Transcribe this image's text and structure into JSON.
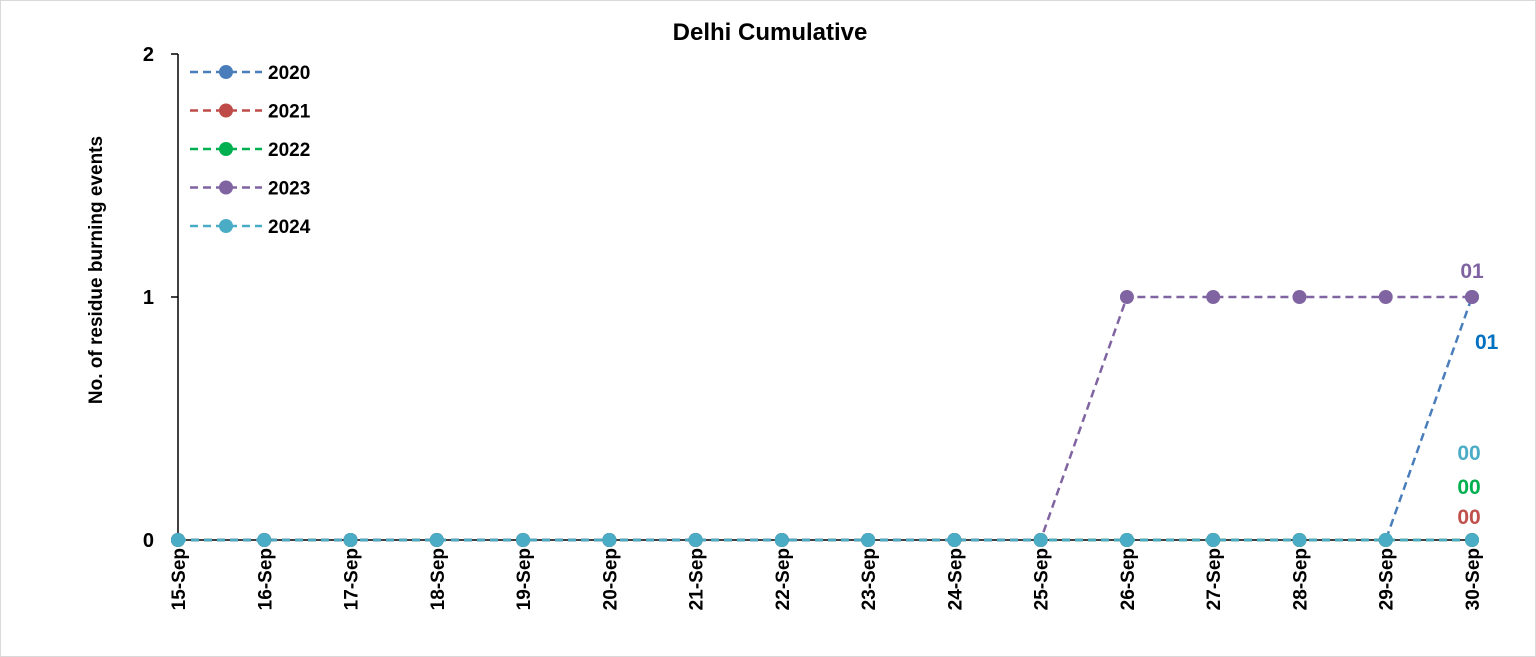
{
  "chart_data": {
    "type": "line",
    "title": "Delhi Cumulative",
    "xlabel": "",
    "ylabel": "No. of residue burning events",
    "categories": [
      "15-Sep",
      "16-Sep",
      "17-Sep",
      "18-Sep",
      "19-Sep",
      "20-Sep",
      "21-Sep",
      "22-Sep",
      "23-Sep",
      "24-Sep",
      "25-Sep",
      "26-Sep",
      "27-Sep",
      "28-Sep",
      "29-Sep",
      "30-Sep"
    ],
    "ylim": [
      0,
      2
    ],
    "yticks": [
      "0",
      "1",
      "2"
    ],
    "grid": false,
    "legend_position": "top-left",
    "series": [
      {
        "name": "2020",
        "color": "#4a7ebb",
        "values": [
          0,
          0,
          0,
          0,
          0,
          0,
          0,
          0,
          0,
          0,
          0,
          0,
          0,
          0,
          0,
          1
        ]
      },
      {
        "name": "2021",
        "color": "#be4b48",
        "values": [
          0,
          0,
          0,
          0,
          0,
          0,
          0,
          0,
          0,
          0,
          0,
          0,
          0,
          0,
          0,
          0
        ]
      },
      {
        "name": "2022",
        "color": "#00b050",
        "values": [
          0,
          0,
          0,
          0,
          0,
          0,
          0,
          0,
          0,
          0,
          0,
          0,
          0,
          0,
          0,
          0
        ]
      },
      {
        "name": "2023",
        "color": "#8064a2",
        "values": [
          0,
          0,
          0,
          0,
          0,
          0,
          0,
          0,
          0,
          0,
          0,
          1,
          1,
          1,
          1,
          1
        ]
      },
      {
        "name": "2024",
        "color": "#4bacc6",
        "values": [
          0,
          0,
          0,
          0,
          0,
          0,
          0,
          0,
          0,
          0,
          0,
          0,
          0,
          0,
          0,
          0
        ]
      }
    ],
    "end_labels": [
      {
        "series": "2023",
        "text": "01",
        "color": "#8064a2"
      },
      {
        "series": "2020",
        "text": "01",
        "color": "#0070c0"
      },
      {
        "series": "2024",
        "text": "00",
        "color": "#4bacc6"
      },
      {
        "series": "2022",
        "text": "00",
        "color": "#00b050"
      },
      {
        "series": "2021",
        "text": "00",
        "color": "#c0504d"
      }
    ]
  }
}
